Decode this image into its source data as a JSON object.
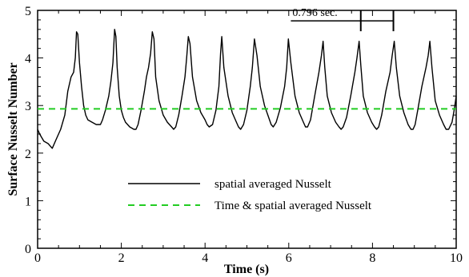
{
  "chart_data": {
    "type": "line",
    "title": "",
    "xlabel": "Time (s)",
    "ylabel": "Surface Nusselt Number",
    "xlim": [
      0,
      10
    ],
    "ylim": [
      0,
      5
    ],
    "x_ticks": [
      0,
      2,
      4,
      6,
      8,
      10
    ],
    "y_ticks": [
      0,
      1,
      2,
      3,
      4,
      5
    ],
    "grid": false,
    "legend_placement": "lower-center",
    "series": [
      {
        "name": "spatial averaged Nusselt",
        "color": "#000000",
        "style": "solid",
        "x": [
          0.0,
          0.05,
          0.15,
          0.25,
          0.35,
          0.45,
          0.55,
          0.65,
          0.72,
          0.8,
          0.86,
          0.9,
          0.93,
          0.96,
          1.0,
          1.05,
          1.1,
          1.15,
          1.2,
          1.3,
          1.4,
          1.5,
          1.55,
          1.62,
          1.7,
          1.75,
          1.8,
          1.84,
          1.87,
          1.9,
          1.95,
          2.0,
          2.05,
          2.1,
          2.2,
          2.3,
          2.35,
          2.4,
          2.47,
          2.55,
          2.6,
          2.65,
          2.7,
          2.74,
          2.78,
          2.82,
          2.9,
          3.0,
          3.1,
          3.2,
          3.25,
          3.3,
          3.37,
          3.45,
          3.52,
          3.56,
          3.6,
          3.64,
          3.7,
          3.8,
          3.9,
          4.0,
          4.05,
          4.1,
          4.18,
          4.26,
          4.33,
          4.37,
          4.4,
          4.45,
          4.55,
          4.65,
          4.75,
          4.8,
          4.85,
          4.92,
          5.0,
          5.08,
          5.13,
          5.18,
          5.24,
          5.32,
          5.42,
          5.52,
          5.58,
          5.63,
          5.7,
          5.8,
          5.9,
          5.95,
          5.99,
          6.05,
          6.15,
          6.25,
          6.35,
          6.4,
          6.45,
          6.52,
          6.62,
          6.72,
          6.78,
          6.82,
          6.86,
          6.92,
          7.02,
          7.12,
          7.2,
          7.25,
          7.3,
          7.38,
          7.48,
          7.58,
          7.63,
          7.68,
          7.72,
          7.78,
          7.88,
          7.98,
          8.05,
          8.1,
          8.15,
          8.22,
          8.32,
          8.42,
          8.47,
          8.52,
          8.57,
          8.65,
          8.75,
          8.85,
          8.92,
          8.97,
          9.02,
          9.08,
          9.18,
          9.28,
          9.33,
          9.37,
          9.42,
          9.5,
          9.6,
          9.7,
          9.76,
          9.82,
          9.9,
          9.96,
          10.0
        ],
        "y": [
          2.5,
          2.4,
          2.25,
          2.2,
          2.1,
          2.3,
          2.5,
          2.8,
          3.3,
          3.6,
          3.7,
          4.0,
          4.55,
          4.5,
          3.9,
          3.4,
          3.0,
          2.8,
          2.7,
          2.65,
          2.6,
          2.6,
          2.7,
          2.9,
          3.2,
          3.5,
          3.9,
          4.6,
          4.45,
          3.8,
          3.2,
          2.9,
          2.75,
          2.65,
          2.55,
          2.5,
          2.5,
          2.6,
          2.9,
          3.3,
          3.6,
          3.8,
          4.1,
          4.55,
          4.4,
          3.6,
          3.1,
          2.8,
          2.65,
          2.55,
          2.5,
          2.55,
          2.8,
          3.2,
          3.6,
          4.0,
          4.45,
          4.3,
          3.6,
          3.1,
          2.85,
          2.7,
          2.6,
          2.55,
          2.6,
          2.9,
          3.4,
          4.1,
          4.45,
          3.8,
          3.2,
          2.85,
          2.65,
          2.55,
          2.5,
          2.6,
          2.9,
          3.4,
          3.8,
          4.4,
          4.05,
          3.4,
          3.0,
          2.75,
          2.6,
          2.55,
          2.65,
          2.95,
          3.4,
          3.8,
          4.4,
          3.9,
          3.2,
          2.85,
          2.65,
          2.55,
          2.55,
          2.7,
          3.2,
          3.7,
          4.05,
          4.35,
          3.8,
          3.2,
          2.85,
          2.65,
          2.55,
          2.5,
          2.55,
          2.75,
          3.2,
          3.7,
          4.0,
          4.35,
          3.85,
          3.2,
          2.85,
          2.65,
          2.55,
          2.5,
          2.55,
          2.8,
          3.3,
          3.7,
          4.05,
          4.35,
          3.8,
          3.2,
          2.85,
          2.6,
          2.5,
          2.5,
          2.6,
          2.9,
          3.4,
          3.8,
          4.05,
          4.35,
          3.8,
          3.1,
          2.8,
          2.6,
          2.5,
          2.5,
          2.65,
          2.95,
          3.2
        ]
      },
      {
        "name": "Time & spatial averaged Nusselt",
        "color": "#22cc22",
        "style": "dashed",
        "x": [
          0,
          10
        ],
        "y": [
          2.93,
          2.93
        ]
      }
    ],
    "annotation": {
      "text": "0.796 sec.",
      "x_start": 7.72,
      "x_end": 8.5,
      "y": 4.78,
      "label_x_start": 6.05
    }
  }
}
